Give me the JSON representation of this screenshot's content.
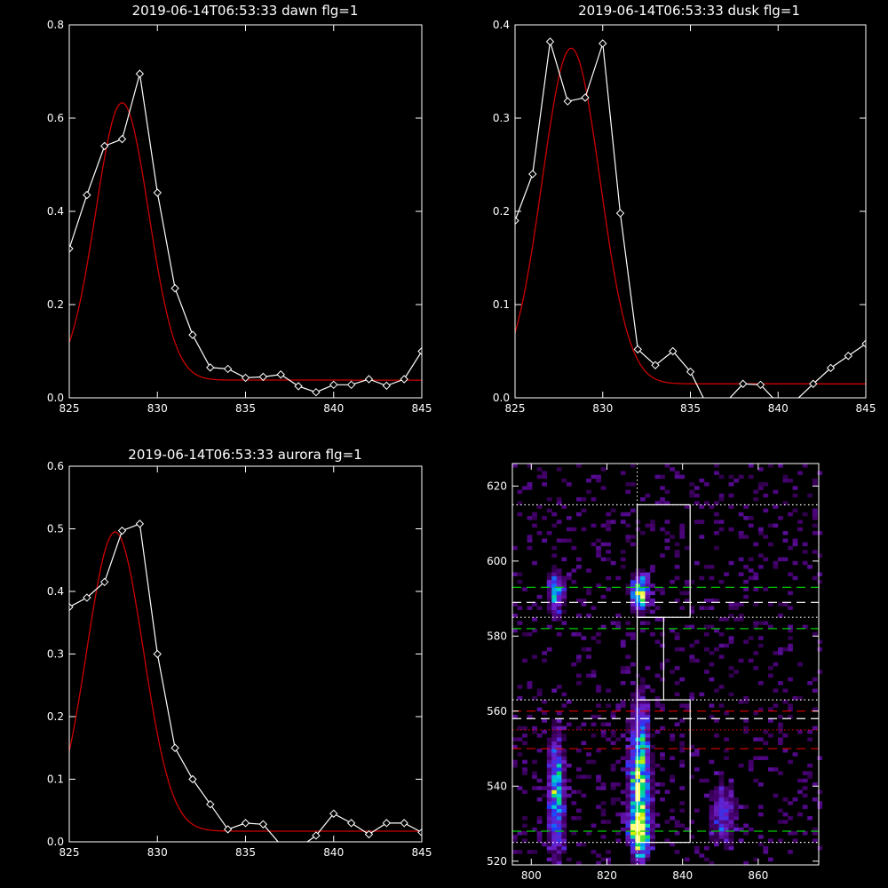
{
  "chart_data": [
    {
      "type": "line",
      "title": "2019-06-14T06:53:33 dawn flg=1",
      "xlim": [
        825,
        845
      ],
      "ylim": [
        0,
        0.8
      ],
      "xticks": [
        825,
        830,
        835,
        840,
        845
      ],
      "yticks": [
        0.0,
        0.2,
        0.4,
        0.6,
        0.8
      ],
      "ytick_labels": [
        "0.0",
        "0.2",
        "0.4",
        "0.6",
        "0.8"
      ],
      "series": [
        {
          "style": "line-with-diamonds",
          "color": "#ffffff",
          "x": [
            825,
            826,
            827,
            828,
            829,
            830,
            831,
            832,
            833,
            834,
            835,
            836,
            837,
            838,
            839,
            840,
            841,
            842,
            843,
            844,
            845
          ],
          "y": [
            0.32,
            0.435,
            0.54,
            0.555,
            0.695,
            0.44,
            0.235,
            0.135,
            0.065,
            0.062,
            0.043,
            0.045,
            0.05,
            0.025,
            0.012,
            0.028,
            0.028,
            0.04,
            0.026,
            0.04,
            0.1
          ]
        },
        {
          "style": "gaussian-fit",
          "color": "#cc0000",
          "peak_x": 828.0,
          "sigma": 1.5,
          "amplitude": 0.595,
          "baseline": 0.038
        }
      ]
    },
    {
      "type": "line",
      "title": "2019-06-14T06:53:33 dusk flg=1",
      "xlim": [
        825,
        845
      ],
      "ylim": [
        0,
        0.4
      ],
      "xticks": [
        825,
        830,
        835,
        840,
        845
      ],
      "yticks": [
        0.0,
        0.1,
        0.2,
        0.3,
        0.4
      ],
      "ytick_labels": [
        "0.0",
        "0.1",
        "0.2",
        "0.3",
        "0.4"
      ],
      "series": [
        {
          "style": "line-with-diamonds",
          "color": "#ffffff",
          "x": [
            825,
            826,
            827,
            828,
            829,
            830,
            831,
            832,
            833,
            834,
            835,
            836,
            837,
            838,
            839,
            840,
            841,
            842,
            843,
            844,
            845
          ],
          "y": [
            0.19,
            0.24,
            0.382,
            0.318,
            0.322,
            0.38,
            0.198,
            0.052,
            0.035,
            0.05,
            0.028,
            -0.01,
            -0.005,
            0.015,
            0.014,
            -0.006,
            -0.003,
            0.015,
            0.032,
            0.045,
            0.058
          ]
        },
        {
          "style": "gaussian-fit",
          "color": "#cc0000",
          "peak_x": 828.2,
          "sigma": 1.65,
          "amplitude": 0.36,
          "baseline": 0.015
        }
      ]
    },
    {
      "type": "line",
      "title": "2019-06-14T06:53:33 aurora flg=1",
      "xlim": [
        825,
        845
      ],
      "ylim": [
        0,
        0.6
      ],
      "xticks": [
        825,
        830,
        835,
        840,
        845
      ],
      "yticks": [
        0.0,
        0.1,
        0.2,
        0.3,
        0.4,
        0.5,
        0.6
      ],
      "ytick_labels": [
        "0.0",
        "0.1",
        "0.2",
        "0.3",
        "0.4",
        "0.5",
        "0.6"
      ],
      "series": [
        {
          "style": "line-with-diamonds",
          "color": "#ffffff",
          "x": [
            825,
            826,
            827,
            828,
            829,
            830,
            831,
            832,
            833,
            834,
            835,
            836,
            837,
            838,
            839,
            840,
            841,
            842,
            843,
            844,
            845
          ],
          "y": [
            0.375,
            0.39,
            0.415,
            0.497,
            0.508,
            0.3,
            0.15,
            0.1,
            0.06,
            0.02,
            0.03,
            0.028,
            -0.005,
            -0.01,
            0.01,
            0.045,
            0.03,
            0.012,
            0.03,
            0.03,
            0.015
          ]
        },
        {
          "style": "gaussian-fit",
          "color": "#cc0000",
          "peak_x": 827.6,
          "sigma": 1.6,
          "amplitude": 0.478,
          "baseline": 0.017
        }
      ]
    },
    {
      "type": "heatmap",
      "xlim": [
        795,
        876
      ],
      "ylim": [
        519,
        626
      ],
      "xticks": [
        800,
        820,
        840,
        860
      ],
      "yticks": [
        520,
        540,
        560,
        580,
        600,
        620
      ],
      "hotspots": [
        {
          "x": 828,
          "y": 591,
          "sx": 1.6,
          "sy": 3,
          "amp": 0.95
        },
        {
          "x": 828,
          "y": 540,
          "sx": 1.8,
          "sy": 14,
          "amp": 0.85
        },
        {
          "x": 828,
          "y": 528,
          "sx": 1.8,
          "sy": 3,
          "amp": 0.9
        },
        {
          "x": 806,
          "y": 591,
          "sx": 1.5,
          "sy": 4,
          "amp": 0.55
        },
        {
          "x": 806,
          "y": 537,
          "sx": 1.6,
          "sy": 11,
          "amp": 0.6
        },
        {
          "x": 850,
          "y": 532,
          "sx": 2.5,
          "sy": 6,
          "amp": 0.35
        }
      ],
      "boxes": [
        {
          "x0": 828,
          "x1": 842,
          "y0": 585,
          "y1": 615
        },
        {
          "x0": 828,
          "x1": 835,
          "y0": 563,
          "y1": 585
        },
        {
          "x0": 828,
          "x1": 842,
          "y0": 525,
          "y1": 563
        }
      ],
      "vertical_line_x": 828,
      "horizontal_lines": [
        {
          "y": 615,
          "style": "dotted",
          "color": "#ffffff"
        },
        {
          "y": 593,
          "style": "dashed",
          "color": "#00cc00"
        },
        {
          "y": 589,
          "style": "dashed",
          "color": "#ffffff"
        },
        {
          "y": 585,
          "style": "dotted",
          "color": "#ffffff"
        },
        {
          "y": 582,
          "style": "dashed",
          "color": "#00cc00"
        },
        {
          "y": 563,
          "style": "dotted",
          "color": "#ffffff"
        },
        {
          "y": 560,
          "style": "dashed",
          "color": "#dd0000"
        },
        {
          "y": 558,
          "style": "dashed",
          "color": "#ffffff"
        },
        {
          "y": 555,
          "style": "dotted",
          "color": "#dd0000"
        },
        {
          "y": 550,
          "style": "dashed",
          "color": "#dd0000"
        },
        {
          "y": 528,
          "style": "dashed",
          "color": "#00cc00"
        },
        {
          "y": 525,
          "style": "dotted",
          "color": "#ffffff"
        }
      ]
    }
  ]
}
